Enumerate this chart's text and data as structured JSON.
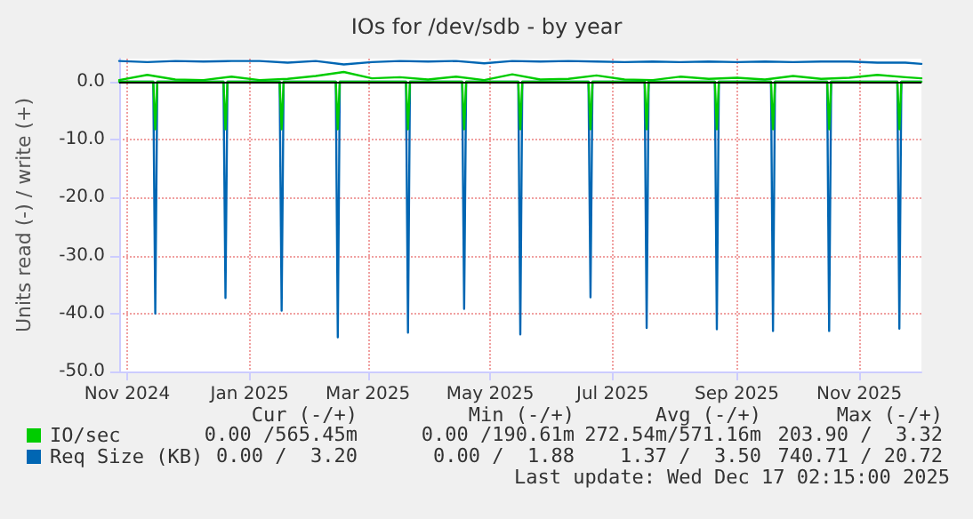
{
  "chart_data": {
    "type": "line",
    "title": "IOs for /dev/sdb - by year",
    "ylabel": "Units read (-) / write (+)",
    "xlim": [
      "2024-11-12",
      "2025-12-17"
    ],
    "xticks": [
      {
        "value": "2024-11-16",
        "label": "Nov 2024"
      },
      {
        "value": "2025-01-16",
        "label": "Jan 2025"
      },
      {
        "value": "2025-03-16",
        "label": "Mar 2025"
      },
      {
        "value": "2025-05-16",
        "label": "May 2025"
      },
      {
        "value": "2025-07-16",
        "label": "Jul 2025"
      },
      {
        "value": "2025-09-16",
        "label": "Sep 2025"
      },
      {
        "value": "2025-11-16",
        "label": "Nov 2025"
      }
    ],
    "ylim": [
      -50,
      4
    ],
    "yticks": [
      {
        "value": -50,
        "label": "-50.0"
      },
      {
        "value": -40,
        "label": "-40.0"
      },
      {
        "value": -30,
        "label": "-30.0"
      },
      {
        "value": -20,
        "label": "-20.0"
      },
      {
        "value": -10,
        "label": "-10.0"
      },
      {
        "value": 0,
        "label": "0.0"
      }
    ],
    "ref_lines": [
      {
        "axis": "y",
        "value": 0,
        "color": "#000000"
      }
    ],
    "grid": true,
    "legend": "bottom left",
    "marker": "none",
    "line_style": "solid",
    "series": [
      {
        "name": "IO/sec",
        "color": "#00cc00",
        "x": [
          "2024-11-12",
          "2024-11-26",
          "2024-12-10",
          "2024-12-24",
          "2025-01-07",
          "2025-01-21",
          "2025-02-04",
          "2025-02-18",
          "2025-03-04",
          "2025-03-18",
          "2025-04-01",
          "2025-04-15",
          "2025-04-29",
          "2025-05-13",
          "2025-05-27",
          "2025-06-10",
          "2025-06-24",
          "2025-07-08",
          "2025-07-22",
          "2025-08-05",
          "2025-08-19",
          "2025-09-02",
          "2025-09-16",
          "2025-09-30",
          "2025-10-14",
          "2025-10-28",
          "2025-11-11",
          "2025-11-25",
          "2025-12-09",
          "2025-12-17"
        ],
        "values": [
          0.3,
          1.2,
          0.4,
          0.3,
          0.9,
          0.3,
          0.5,
          1.0,
          1.7,
          0.6,
          0.8,
          0.4,
          0.9,
          0.3,
          1.3,
          0.4,
          0.5,
          1.1,
          0.4,
          0.3,
          0.9,
          0.5,
          0.7,
          0.4,
          1.0,
          0.5,
          0.7,
          1.2,
          0.8,
          0.6
        ]
      },
      {
        "name": "Req Size (KB)",
        "color": "#0066b3",
        "x": [
          "2024-11-12",
          "2024-11-26",
          "2024-12-10",
          "2024-12-24",
          "2025-01-07",
          "2025-01-21",
          "2025-02-04",
          "2025-02-18",
          "2025-03-04",
          "2025-03-18",
          "2025-04-01",
          "2025-04-15",
          "2025-04-29",
          "2025-05-13",
          "2025-05-27",
          "2025-06-10",
          "2025-06-24",
          "2025-07-08",
          "2025-07-22",
          "2025-08-05",
          "2025-08-19",
          "2025-09-02",
          "2025-09-16",
          "2025-09-30",
          "2025-10-14",
          "2025-10-28",
          "2025-11-11",
          "2025-11-25",
          "2025-12-09",
          "2025-12-17"
        ],
        "values": [
          3.6,
          3.4,
          3.6,
          3.5,
          3.6,
          3.6,
          3.3,
          3.6,
          3.0,
          3.4,
          3.6,
          3.5,
          3.6,
          3.2,
          3.6,
          3.5,
          3.6,
          3.5,
          3.4,
          3.5,
          3.4,
          3.5,
          3.4,
          3.5,
          3.4,
          3.5,
          3.5,
          3.3,
          3.3,
          3.1
        ]
      },
      {
        "color": "#0066b3",
        "x": [
          "2024-11-12",
          "2024-11-29",
          "2024-11-30",
          "2024-12-01",
          "2025-01-03",
          "2025-01-04",
          "2025-01-05",
          "2025-01-31",
          "2025-02-01",
          "2025-02-02",
          "2025-02-28",
          "2025-03-01",
          "2025-03-02",
          "2025-04-04",
          "2025-04-05",
          "2025-04-06",
          "2025-05-02",
          "2025-05-03",
          "2025-05-04",
          "2025-05-30",
          "2025-05-31",
          "2025-06-01",
          "2025-07-04",
          "2025-07-05",
          "2025-07-06",
          "2025-08-01",
          "2025-08-02",
          "2025-08-03",
          "2025-09-05",
          "2025-09-06",
          "2025-09-07",
          "2025-10-03",
          "2025-10-04",
          "2025-10-05",
          "2025-10-31",
          "2025-11-01",
          "2025-11-02",
          "2025-12-05",
          "2025-12-06",
          "2025-12-07",
          "2025-12-17"
        ],
        "values": [
          0,
          0,
          -40.0,
          0,
          0,
          -37.3,
          0,
          0,
          -39.5,
          0,
          0,
          -44.1,
          0,
          0,
          -43.3,
          0,
          0,
          -39.2,
          0,
          0,
          -43.6,
          0,
          0,
          -37.2,
          0,
          0,
          -42.5,
          0,
          0,
          -42.7,
          0,
          0,
          -43.0,
          0,
          0,
          -43.0,
          0,
          0,
          -42.6,
          0,
          0
        ]
      },
      {
        "color": "#00cc00",
        "x": [
          "2024-11-12",
          "2024-11-29",
          "2024-11-30",
          "2024-12-01",
          "2025-01-03",
          "2025-01-04",
          "2025-01-05",
          "2025-01-31",
          "2025-02-01",
          "2025-02-02",
          "2025-02-28",
          "2025-03-01",
          "2025-03-02",
          "2025-04-04",
          "2025-04-05",
          "2025-04-06",
          "2025-05-02",
          "2025-05-03",
          "2025-05-04",
          "2025-05-30",
          "2025-05-31",
          "2025-06-01",
          "2025-07-04",
          "2025-07-05",
          "2025-07-06",
          "2025-08-01",
          "2025-08-02",
          "2025-08-03",
          "2025-09-05",
          "2025-09-06",
          "2025-09-07",
          "2025-10-03",
          "2025-10-04",
          "2025-10-05",
          "2025-10-31",
          "2025-11-01",
          "2025-11-02",
          "2025-12-05",
          "2025-12-06",
          "2025-12-07",
          "2025-12-17"
        ],
        "values": [
          0,
          0,
          -8.2,
          0,
          0,
          -8.2,
          0,
          0,
          -8.2,
          0,
          0,
          -8.2,
          0,
          0,
          -8.2,
          0,
          0,
          -8.2,
          0,
          0,
          -8.2,
          0,
          0,
          -8.2,
          0,
          0,
          -8.2,
          0,
          0,
          -8.2,
          0,
          0,
          -8.2,
          0,
          0,
          -8.2,
          0,
          0,
          -8.2,
          0,
          0
        ]
      }
    ],
    "annotations": [
      "Cur (-/+)",
      "Min (-/+)",
      "Avg (-/+)",
      "Max (-/+)",
      "0.00 /565.45m",
      "0.00 /190.61m",
      "272.54m/571.16m",
      "203.90 /  3.32",
      "0.00 /  3.20",
      "0.00 /  1.88",
      "1.37 /  3.50",
      "740.71 / 20.72",
      "Last update: Wed Dec 17 02:15:00 2025"
    ]
  }
}
